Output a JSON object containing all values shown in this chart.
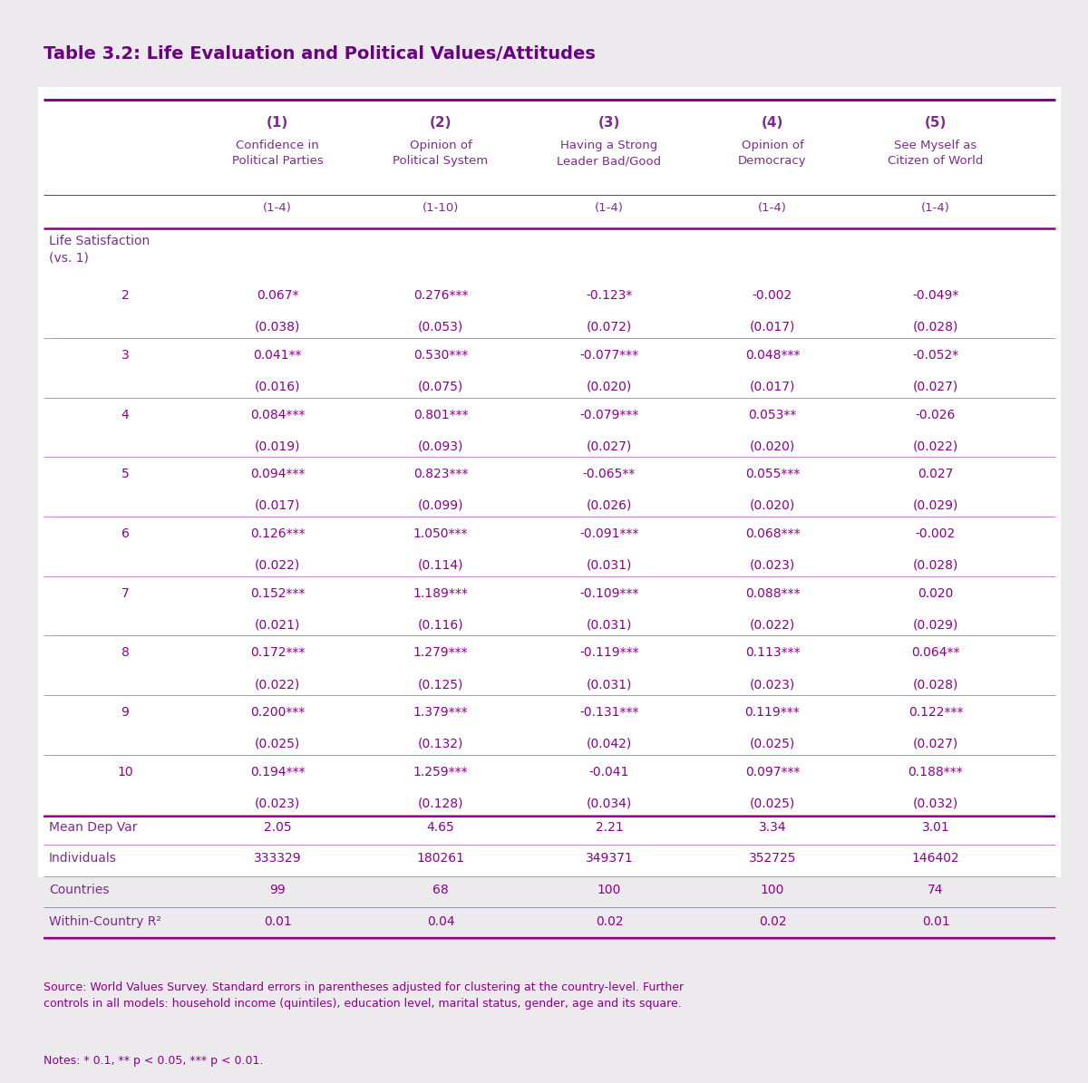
{
  "title": "Table 3.2: Life Evaluation and Political Values/Attitudes",
  "col_headers_line1": [
    "",
    "(1)",
    "(2)",
    "(3)",
    "(4)",
    "(5)"
  ],
  "col_headers_line2": [
    "",
    "Confidence in\nPolitical Parties",
    "Opinion of\nPolitical System",
    "Having a Strong\nLeader Bad/Good",
    "Opinion of\nDemocracy",
    "See Myself as\nCitizen of World"
  ],
  "col_headers_line3": [
    "",
    "(1-4)",
    "(1-10)",
    "(1-4)",
    "(1-4)",
    "(1-4)"
  ],
  "rows": [
    [
      "Life Satisfaction\n(vs. 1)",
      "",
      "",
      "",
      "",
      ""
    ],
    [
      "2",
      "0.067*",
      "0.276***",
      "-0.123*",
      "-0.002",
      "-0.049*"
    ],
    [
      "",
      "(0.038)",
      "(0.053)",
      "(0.072)",
      "(0.017)",
      "(0.028)"
    ],
    [
      "3",
      "0.041**",
      "0.530***",
      "-0.077***",
      "0.048***",
      "-0.052*"
    ],
    [
      "",
      "(0.016)",
      "(0.075)",
      "(0.020)",
      "(0.017)",
      "(0.027)"
    ],
    [
      "4",
      "0.084***",
      "0.801***",
      "-0.079***",
      "0.053**",
      "-0.026"
    ],
    [
      "",
      "(0.019)",
      "(0.093)",
      "(0.027)",
      "(0.020)",
      "(0.022)"
    ],
    [
      "5",
      "0.094***",
      "0.823***",
      "-0.065**",
      "0.055***",
      "0.027"
    ],
    [
      "",
      "(0.017)",
      "(0.099)",
      "(0.026)",
      "(0.020)",
      "(0.029)"
    ],
    [
      "6",
      "0.126***",
      "1.050***",
      "-0.091***",
      "0.068***",
      "-0.002"
    ],
    [
      "",
      "(0.022)",
      "(0.114)",
      "(0.031)",
      "(0.023)",
      "(0.028)"
    ],
    [
      "7",
      "0.152***",
      "1.189***",
      "-0.109***",
      "0.088***",
      "0.020"
    ],
    [
      "",
      "(0.021)",
      "(0.116)",
      "(0.031)",
      "(0.022)",
      "(0.029)"
    ],
    [
      "8",
      "0.172***",
      "1.279***",
      "-0.119***",
      "0.113***",
      "0.064**"
    ],
    [
      "",
      "(0.022)",
      "(0.125)",
      "(0.031)",
      "(0.023)",
      "(0.028)"
    ],
    [
      "9",
      "0.200***",
      "1.379***",
      "-0.131***",
      "0.119***",
      "0.122***"
    ],
    [
      "",
      "(0.025)",
      "(0.132)",
      "(0.042)",
      "(0.025)",
      "(0.027)"
    ],
    [
      "10",
      "0.194***",
      "1.259***",
      "-0.041",
      "0.097***",
      "0.188***"
    ],
    [
      "",
      "(0.023)",
      "(0.128)",
      "(0.034)",
      "(0.025)",
      "(0.032)"
    ]
  ],
  "footer_rows": [
    [
      "Mean Dep Var",
      "2.05",
      "4.65",
      "2.21",
      "3.34",
      "3.01"
    ],
    [
      "Individuals",
      "333329",
      "180261",
      "349371",
      "352725",
      "146402"
    ],
    [
      "Countries",
      "99",
      "68",
      "100",
      "100",
      "74"
    ],
    [
      "Within-Country R²",
      "0.01",
      "0.04",
      "0.02",
      "0.02",
      "0.01"
    ]
  ],
  "source_text": "Source: World Values Survey. Standard errors in parentheses adjusted for clustering at the country-level. Further\ncontrols in all models: household income (quintiles), education level, marital status, gender, age and its square.",
  "notes_text": "Notes: * 0.1, ** p < 0.05, *** p < 0.01.",
  "bg_color": "#EDEAED",
  "table_bg": "#FFFFFF",
  "header_color": "#7B2D8B",
  "cell_text_color": "#8B008B",
  "title_color": "#6B0080",
  "line_color": "#8B008B"
}
